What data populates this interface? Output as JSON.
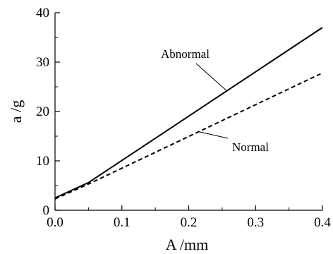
{
  "chart_data": {
    "type": "line",
    "title": "",
    "xlabel": "A /mm",
    "ylabel": "a /g",
    "xlim": [
      0.0,
      0.4
    ],
    "ylim": [
      0,
      40
    ],
    "x_ticks": [
      0.0,
      0.1,
      0.2,
      0.3,
      0.4
    ],
    "x_tick_labels": [
      "0.0",
      "0.1",
      "0.2",
      "0.3",
      "0.4"
    ],
    "y_ticks": [
      0,
      10,
      20,
      30,
      40
    ],
    "y_tick_labels": [
      "0",
      "10",
      "20",
      "30",
      "40"
    ],
    "grid": false,
    "legend": "none",
    "series": [
      {
        "name": "Abnormal",
        "style": "solid",
        "color": "#000000",
        "x": [
          0.0,
          0.05,
          0.4
        ],
        "y": [
          2.5,
          5.6,
          37.0
        ]
      },
      {
        "name": "Normal",
        "style": "dashed",
        "color": "#000000",
        "x": [
          0.0,
          0.05,
          0.4
        ],
        "y": [
          2.3,
          5.3,
          27.8
        ]
      }
    ],
    "annotations": [
      {
        "text": "Abnormal",
        "series": 0
      },
      {
        "text": "Normal",
        "series": 1
      }
    ]
  }
}
